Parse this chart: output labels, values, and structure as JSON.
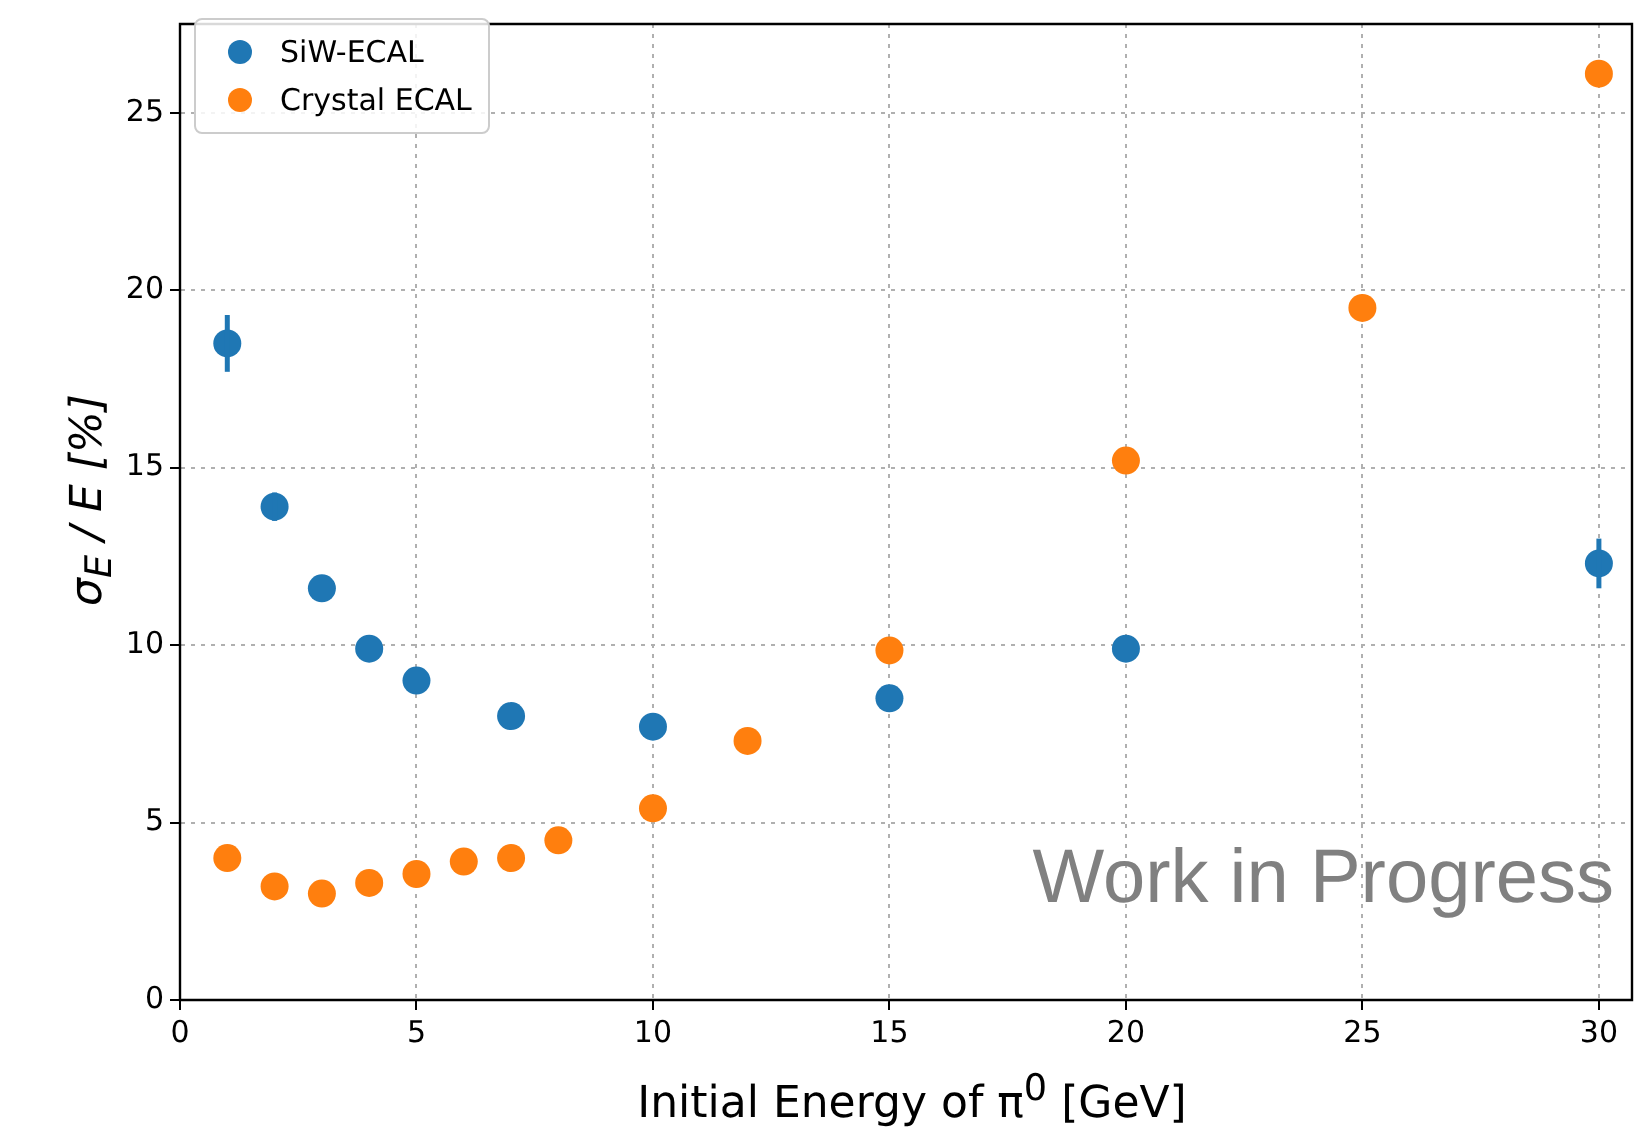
{
  "chart_data": {
    "type": "scatter",
    "xlabel": "Initial Energy of π$^{0}$ [GeV]",
    "ylabel": "σ$_{E}$ / E [%]",
    "xlim": [
      0,
      30.7
    ],
    "xticks": [
      0,
      5,
      10,
      15,
      20,
      25,
      30
    ],
    "ylim": [
      0,
      27.5
    ],
    "yticks": [
      0,
      5,
      10,
      15,
      20,
      25
    ],
    "grid": true,
    "legend": "top left",
    "marker": "circle",
    "annotations": [
      "Work in Progress"
    ],
    "series": [
      {
        "name": "SiW-ECAL",
        "color": "#1f77b4",
        "x": [
          1,
          2,
          3,
          4,
          5,
          7,
          10,
          15,
          20,
          30
        ],
        "values": [
          18.5,
          13.9,
          11.6,
          9.9,
          9.0,
          8.0,
          7.7,
          8.5,
          9.9,
          12.3
        ],
        "errors": [
          0.8,
          0.4,
          null,
          null,
          null,
          null,
          null,
          null,
          null,
          0.7
        ]
      },
      {
        "name": "Crystal ECAL",
        "color": "#ff7f0e",
        "x": [
          1,
          2,
          3,
          4,
          5,
          6,
          7,
          8,
          10,
          12,
          15,
          20,
          25,
          30
        ],
        "values": [
          4.0,
          3.2,
          3.0,
          3.3,
          3.55,
          3.9,
          4.0,
          4.5,
          5.4,
          7.3,
          9.85,
          15.2,
          19.5,
          26.1
        ]
      }
    ]
  }
}
